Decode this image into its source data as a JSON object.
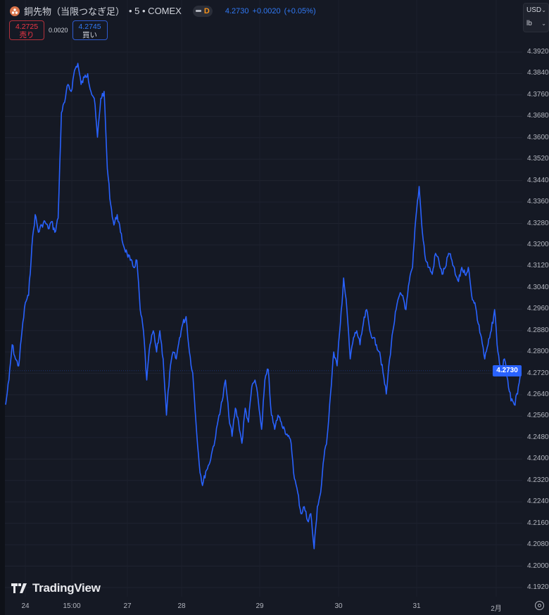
{
  "header": {
    "symbol_title": "銅先物（当限つなぎ足）",
    "interval": "• 5 • COMEX",
    "status_badge": "D",
    "last_price": "4.2730",
    "change": "+0.0020",
    "change_pct": "(+0.05%)",
    "icon": "copper-symbol-icon"
  },
  "quote": {
    "sell_price": "4.2725",
    "sell_label": "売り",
    "spread": "0.0020",
    "buy_price": "4.2745",
    "buy_label": "買い"
  },
  "units": {
    "currency": "USD",
    "unit": "lb"
  },
  "brand": "TradingView",
  "colors": {
    "background": "#151924",
    "line": "#2962ff",
    "sell": "#f23645",
    "buy": "#3179f5"
  },
  "chart_data": {
    "type": "line",
    "title": "",
    "xlabel": "",
    "ylabel": "",
    "ylim": [
      4.188,
      4.396
    ],
    "grid": true,
    "last_value": "4.2730",
    "y_ticks": [
      "4.3920",
      "4.3840",
      "4.3760",
      "4.3680",
      "4.3600",
      "4.3520",
      "4.3440",
      "4.3360",
      "4.3280",
      "4.3200",
      "4.3120",
      "4.3040",
      "4.2960",
      "4.2880",
      "4.2800",
      "4.2720",
      "4.2640",
      "4.2560",
      "4.2480",
      "4.2400",
      "4.2320",
      "4.2240",
      "4.2160",
      "4.2080",
      "4.2000",
      "4.1920"
    ],
    "x_ticks": [
      "24",
      "15:00",
      "27",
      "28",
      "29",
      "30",
      "31",
      "2月"
    ],
    "series": [
      {
        "values": [
          4.2603,
          4.2695,
          4.2827,
          4.2774,
          4.2748,
          4.2879,
          4.2984,
          4.3011,
          4.3195,
          4.3313,
          4.3247,
          4.3274,
          4.3287,
          4.326,
          4.3287,
          4.3247,
          4.33,
          4.3694,
          4.3733,
          4.3799,
          4.3773,
          4.3852,
          4.3878,
          4.3799,
          4.3825,
          4.3839,
          4.3773,
          4.3747,
          4.3602,
          4.3747,
          4.3773,
          4.3484,
          4.3352,
          4.3274,
          4.3313,
          4.3247,
          4.3195,
          4.3168,
          4.3142,
          4.3116,
          4.3142,
          4.2958,
          4.2879,
          4.2695,
          4.2827,
          4.2879,
          4.28,
          4.2879,
          4.2774,
          4.2564,
          4.2722,
          4.28,
          4.2774,
          4.2853,
          4.2906,
          4.2932,
          4.28,
          4.2722,
          4.2538,
          4.238,
          4.2301,
          4.2354,
          4.238,
          4.2433,
          4.2485,
          4.2564,
          4.2617,
          4.2695,
          4.2564,
          4.2485,
          4.259,
          4.2538,
          4.2459,
          4.259,
          4.2538,
          4.2669,
          4.2695,
          4.2617,
          4.2511,
          4.2695,
          4.2735,
          4.2564,
          4.2511,
          4.2564,
          4.2538,
          4.2511,
          4.2485,
          4.2459,
          4.2327,
          4.2275,
          4.2196,
          4.2222,
          4.217,
          4.2196,
          4.2065,
          4.2222,
          4.2275,
          4.2406,
          4.2485,
          4.2643,
          4.28,
          4.2748,
          4.2906,
          4.3076,
          4.2958,
          4.2774,
          4.2853,
          4.2879,
          4.2827,
          4.2906,
          4.2958,
          4.2879,
          4.2853,
          4.2827,
          4.28,
          4.2722,
          4.2643,
          4.2774,
          4.2879,
          4.2958,
          4.3011,
          4.3011,
          4.2958,
          4.3063,
          4.3116,
          4.33,
          4.3418,
          4.3247,
          4.3142,
          4.3116,
          4.309,
          4.3168,
          4.3142,
          4.309,
          4.3116,
          4.3168,
          4.3142,
          4.309,
          4.3063,
          4.3116,
          4.309,
          4.3116,
          4.3011,
          4.2984,
          4.2906,
          4.2853,
          4.2774,
          4.2827,
          4.2879,
          4.2958,
          4.28,
          4.2722,
          4.2774,
          4.2695,
          4.2617,
          4.2603,
          4.2643,
          4.273
        ]
      }
    ]
  }
}
